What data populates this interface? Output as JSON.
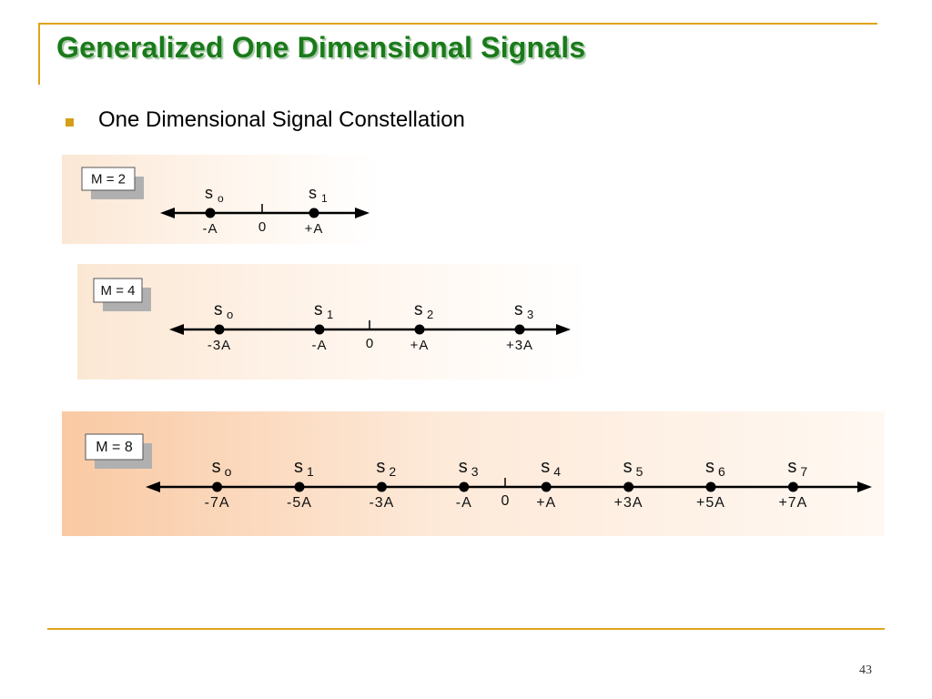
{
  "slide": {
    "title": "Generalized One Dimensional Signals",
    "bullet": "One Dimensional Signal Constellation",
    "page_number": "43"
  },
  "colors": {
    "accent_line": "#e0a31a",
    "title_green": "#1a7a1a",
    "bullet_gold": "#d4a017"
  },
  "panels": [
    {
      "m_label": "M = 2",
      "origin_label": "0",
      "points": [
        {
          "name": "s",
          "sub": "o",
          "value": -1,
          "label": "-A"
        },
        {
          "name": "s",
          "sub": "1",
          "value": 1,
          "label": "+A"
        }
      ]
    },
    {
      "m_label": "M = 4",
      "origin_label": "0",
      "points": [
        {
          "name": "s",
          "sub": "o",
          "value": -3,
          "label": "-3A"
        },
        {
          "name": "s",
          "sub": "1",
          "value": -1,
          "label": "-A"
        },
        {
          "name": "s",
          "sub": "2",
          "value": 1,
          "label": "+A"
        },
        {
          "name": "s",
          "sub": "3",
          "value": 3,
          "label": "+3A"
        }
      ]
    },
    {
      "m_label": "M = 8",
      "origin_label": "0",
      "points": [
        {
          "name": "s",
          "sub": "o",
          "value": -7,
          "label": "-7A"
        },
        {
          "name": "s",
          "sub": "1",
          "value": -5,
          "label": "-5A"
        },
        {
          "name": "s",
          "sub": "2",
          "value": -3,
          "label": "-3A"
        },
        {
          "name": "s",
          "sub": "3",
          "value": -1,
          "label": "-A"
        },
        {
          "name": "s",
          "sub": "4",
          "value": 1,
          "label": "+A"
        },
        {
          "name": "s",
          "sub": "5",
          "value": 3,
          "label": "+3A"
        },
        {
          "name": "s",
          "sub": "6",
          "value": 5,
          "label": "+5A"
        },
        {
          "name": "s",
          "sub": "7",
          "value": 7,
          "label": "+7A"
        }
      ]
    }
  ]
}
